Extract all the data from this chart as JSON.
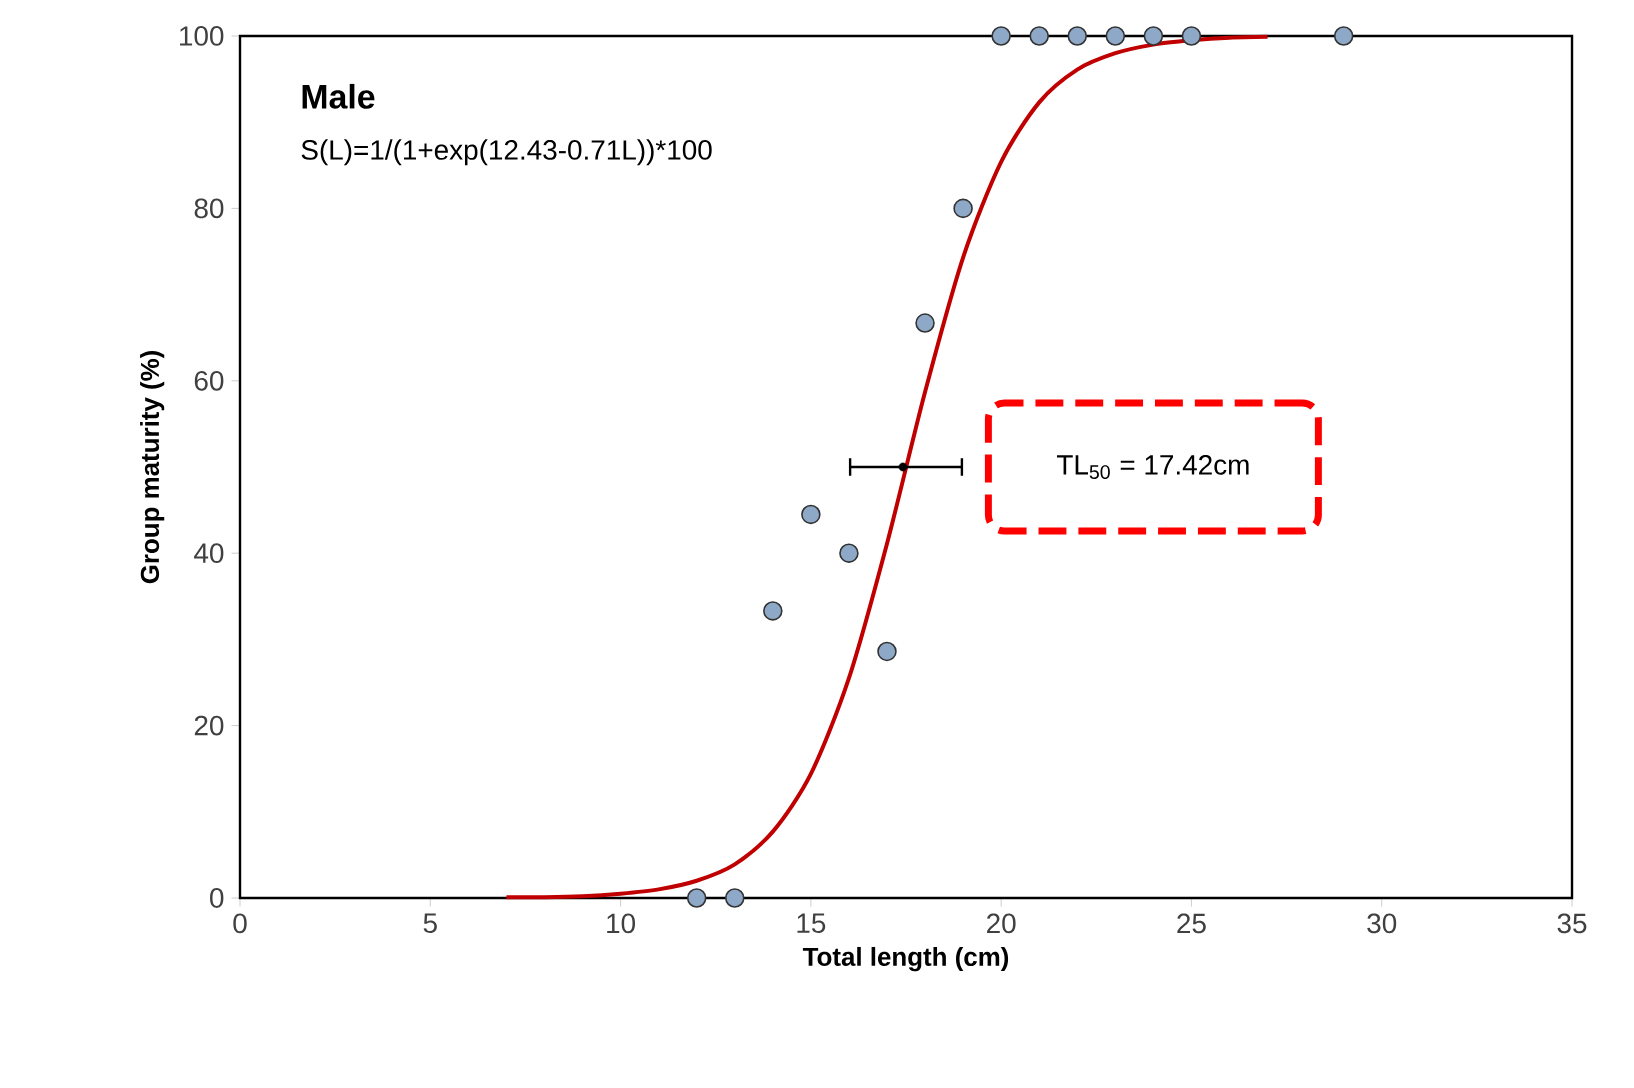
{
  "chart_data": {
    "type": "scatter",
    "title": "Male",
    "xlabel": "Total length (cm)",
    "ylabel": "Group maturity (%)",
    "annotations": [
      "S(L)=1/(1+exp(12.43-0.71L))*100",
      "TL$_{50}$ = 17.42cm"
    ],
    "xlim": [
      0,
      35
    ],
    "ylim": [
      0,
      100
    ],
    "xticks": [
      0,
      5,
      10,
      15,
      20,
      25,
      30,
      35
    ],
    "yticks": [
      0,
      20,
      40,
      60,
      80,
      100
    ],
    "grid": false,
    "marker": "circle",
    "series": [
      {
        "type": "line",
        "color": "#c00000",
        "marker": "none",
        "x": [
          7,
          8,
          9,
          10,
          11,
          12,
          13,
          14,
          15,
          16,
          17,
          18,
          19,
          20,
          21,
          22,
          23,
          24,
          25,
          26,
          27
        ],
        "values": [
          0.1,
          0.1,
          0.2,
          0.5,
          1.0,
          2.0,
          3.9,
          7.7,
          14.4,
          25.5,
          41.1,
          58.7,
          74.3,
          85.4,
          92.3,
          96.1,
          98.0,
          99.0,
          99.5,
          99.8,
          99.9
        ]
      },
      {
        "color": "#8ea9c8",
        "x": [
          12,
          13,
          14,
          15,
          16,
          17,
          18,
          19,
          20,
          21,
          22,
          23,
          24,
          25,
          29
        ],
        "values": [
          0,
          0,
          33.3,
          44.5,
          40,
          28.6,
          66.7,
          80,
          100,
          100,
          100,
          100,
          100,
          100,
          100
        ]
      },
      {
        "color": "#000000",
        "marker": "circle",
        "x": [
          17.42
        ],
        "values": [
          50
        ],
        "xerrors": [
          [
            16,
            19
          ]
        ]
      }
    ]
  }
}
